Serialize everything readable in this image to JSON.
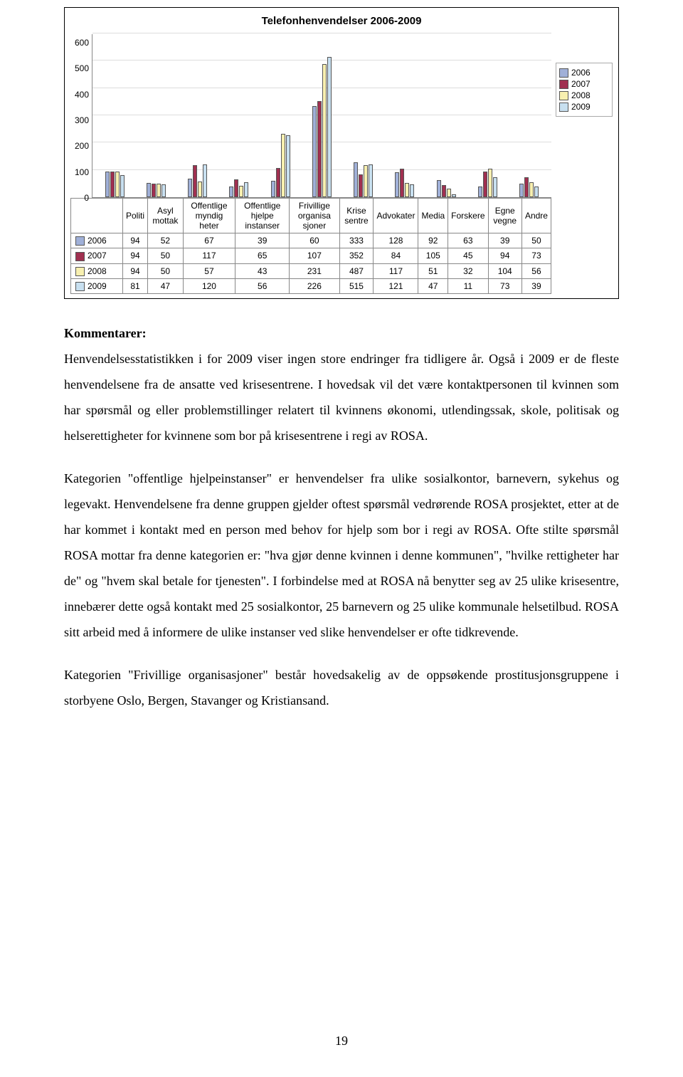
{
  "chart": {
    "title": "Telefonhenvendelser 2006-2009",
    "ymax": 600,
    "ystep": 100,
    "yticks": [
      "600",
      "500",
      "400",
      "300",
      "200",
      "100",
      "0"
    ],
    "categories": [
      "Politi",
      "Asyl mottak",
      "Offentlige myndig heter",
      "Offentlige hjelpe instanser",
      "Frivillige organisa sjoner",
      "Krise sentre",
      "Advokater",
      "Media",
      "Forskere",
      "Egne vegne",
      "Andre"
    ],
    "legend": [
      "2006",
      "2007",
      "2008",
      "2009"
    ],
    "colors": [
      "#a0b0d8",
      "#a03050",
      "#f8f0b0",
      "#c8e0f0"
    ],
    "series": {
      "2006": [
        94,
        52,
        67,
        39,
        60,
        333,
        128,
        92,
        63,
        39,
        50
      ],
      "2007": [
        94,
        50,
        117,
        65,
        107,
        352,
        84,
        105,
        45,
        94,
        73
      ],
      "2008": [
        94,
        50,
        57,
        43,
        231,
        487,
        117,
        51,
        32,
        104,
        56
      ],
      "2009": [
        81,
        47,
        120,
        56,
        226,
        515,
        121,
        47,
        11,
        73,
        39
      ]
    }
  },
  "text": {
    "heading": "Kommentarer:",
    "p1": "Henvendelsesstatistikken i for 2009 viser ingen store endringer fra tidligere år. Også i 2009 er de fleste henvendelsene fra de ansatte ved krisesentrene. I hovedsak vil det være kontaktpersonen til kvinnen som har spørsmål og eller problemstillinger relatert til kvinnens økonomi, utlendingssak, skole, politisak og helserettigheter for kvinnene som bor på krisesentrene i regi av ROSA.",
    "p2": "Kategorien \"offentlige hjelpeinstanser\" er henvendelser fra ulike sosialkontor, barnevern, sykehus og legevakt. Henvendelsene fra denne gruppen gjelder oftest spørsmål vedrørende ROSA prosjektet, etter at de har kommet i kontakt med en person med behov for hjelp som bor i regi av ROSA. Ofte stilte spørsmål ROSA mottar fra denne kategorien er: \"hva gjør denne kvinnen i denne kommunen\", \"hvilke rettigheter har de\" og \"hvem skal betale for tjenesten\". I forbindelse med at ROSA nå benytter seg av 25 ulike krisesentre, innebærer dette også kontakt med 25 sosialkontor, 25 barnevern og 25 ulike kommunale helsetilbud. ROSA sitt arbeid med å informere de ulike instanser ved slike henvendelser er ofte tidkrevende.",
    "p3": "Kategorien \"Frivillige organisasjoner\" består hovedsakelig av de oppsøkende prostitusjonsgruppene i storbyene Oslo, Bergen, Stavanger og Kristiansand."
  },
  "page_number": "19"
}
